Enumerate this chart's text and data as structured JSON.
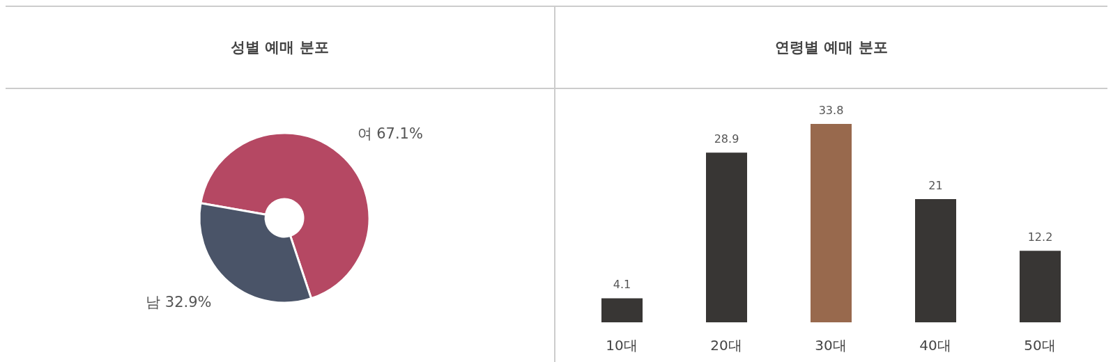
{
  "chart_data": [
    {
      "type": "donut",
      "title": "성별 예매 분포",
      "categories": [
        "여",
        "남"
      ],
      "values": [
        67.1,
        32.9
      ],
      "colors": [
        "#b54863",
        "#4a5468"
      ],
      "value_labels": [
        "67.1%",
        "32.9%"
      ]
    },
    {
      "type": "bar",
      "title": "연령별 예매 분포",
      "categories": [
        "10대",
        "20대",
        "30대",
        "40대",
        "50대"
      ],
      "values": [
        4.1,
        28.9,
        33.8,
        21,
        12.2
      ],
      "colors": [
        "#383634",
        "#383634",
        "#98694d",
        "#383634",
        "#383634"
      ],
      "data_labels": true
    }
  ]
}
